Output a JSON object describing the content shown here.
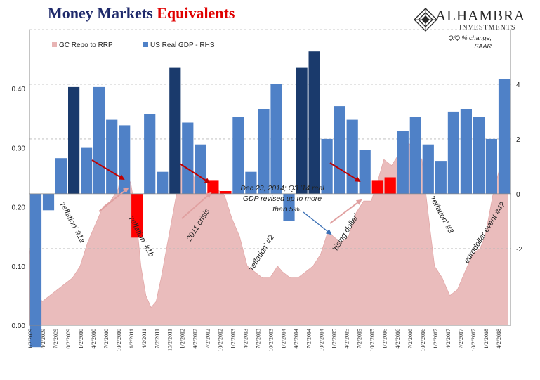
{
  "header": {
    "title_part1": "Money Markets",
    "title_part2": "Equivalents",
    "logo_name": "ALHAMBRA",
    "logo_sub": "INVESTMENTS",
    "logo_icon": "alhambra-diamond-icon"
  },
  "chart_data": {
    "type": "bar",
    "legend": [
      {
        "name": "GC Repo to RRP",
        "color": "#e8b4b4",
        "kind": "area"
      },
      {
        "name": "US Real GDP - RHS",
        "color": "#4f81c7",
        "kind": "bar"
      }
    ],
    "legend_position": "top-left",
    "rhs_unit_note": "Q/Q % change, SAAR",
    "left_axis": {
      "ylim": [
        0,
        0.5
      ],
      "ticks": [
        "0.00",
        "0.10",
        "0.20",
        "0.30",
        "0.40"
      ]
    },
    "right_axis": {
      "ylim": [
        -4.8,
        6
      ],
      "ticks": [
        "4",
        "2",
        "0",
        "-2"
      ]
    },
    "grid": "horizontal dashed",
    "x_tick_labels": [
      "1/2/2009",
      "4/2/2009",
      "7/2/2009",
      "10/2/2009",
      "1/2/2010",
      "4/2/2010",
      "7/2/2010",
      "10/2/2010",
      "1/2/2011",
      "4/2/2011",
      "7/2/2011",
      "10/2/2011",
      "1/2/2012",
      "4/2/2012",
      "7/2/2012",
      "10/2/2012",
      "1/2/2013",
      "4/2/2013",
      "7/2/2013",
      "10/2/2013",
      "1/2/2014",
      "4/2/2014",
      "7/2/2014",
      "10/2/2014",
      "1/2/2015",
      "4/2/2015",
      "7/2/2015",
      "10/2/2015",
      "1/2/2016",
      "4/2/2016",
      "7/2/2016",
      "10/2/2016",
      "1/2/2017",
      "4/2/2017",
      "7/2/2017",
      "10/2/2017",
      "1/2/2018",
      "4/2/2018"
    ],
    "gdp_quarters": [
      "2009Q1",
      "2009Q2",
      "2009Q3",
      "2009Q4",
      "2010Q1",
      "2010Q2",
      "2010Q3",
      "2010Q4",
      "2011Q1",
      "2011Q2",
      "2011Q3",
      "2011Q4",
      "2012Q1",
      "2012Q2",
      "2012Q3",
      "2012Q4",
      "2013Q1",
      "2013Q2",
      "2013Q3",
      "2013Q4",
      "2014Q1",
      "2014Q2",
      "2014Q3",
      "2014Q4",
      "2015Q1",
      "2015Q2",
      "2015Q3",
      "2015Q4",
      "2016Q1",
      "2016Q2",
      "2016Q3",
      "2016Q4",
      "2017Q1",
      "2017Q2",
      "2017Q3",
      "2017Q4",
      "2018Q1",
      "2018Q2"
    ],
    "gdp_values": [
      -5.6,
      -0.6,
      1.3,
      3.9,
      1.7,
      3.9,
      2.7,
      2.5,
      -1.6,
      2.9,
      0.8,
      4.6,
      2.6,
      1.8,
      0.5,
      0.1,
      2.8,
      0.8,
      3.1,
      4.0,
      -1.0,
      4.6,
      5.2,
      2.0,
      3.2,
      2.7,
      1.6,
      0.5,
      0.6,
      2.3,
      2.8,
      1.8,
      1.2,
      3.0,
      3.1,
      2.8,
      2.0,
      4.2
    ],
    "gdp_colors": [
      "#4f81c7",
      "#4f81c7",
      "#4f81c7",
      "#1a3a6c",
      "#4f81c7",
      "#4f81c7",
      "#4f81c7",
      "#4f81c7",
      "#ff0000",
      "#4f81c7",
      "#4f81c7",
      "#1a3a6c",
      "#4f81c7",
      "#4f81c7",
      "#ff0000",
      "#ff0000",
      "#4f81c7",
      "#4f81c7",
      "#4f81c7",
      "#4f81c7",
      "#4f81c7",
      "#1a3a6c",
      "#1a3a6c",
      "#4f81c7",
      "#4f81c7",
      "#4f81c7",
      "#4f81c7",
      "#ff0000",
      "#ff0000",
      "#4f81c7",
      "#4f81c7",
      "#4f81c7",
      "#4f81c7",
      "#4f81c7",
      "#4f81c7",
      "#4f81c7",
      "#4f81c7",
      "#4f81c7"
    ],
    "repo_spread_approx": [
      [
        2009.0,
        0.13
      ],
      [
        2009.12,
        0.06
      ],
      [
        2009.25,
        0.04
      ],
      [
        2009.4,
        0.05
      ],
      [
        2009.55,
        0.06
      ],
      [
        2009.7,
        0.07
      ],
      [
        2009.85,
        0.08
      ],
      [
        2010.0,
        0.1
      ],
      [
        2010.15,
        0.14
      ],
      [
        2010.3,
        0.17
      ],
      [
        2010.45,
        0.2
      ],
      [
        2010.6,
        0.21
      ],
      [
        2010.75,
        0.23
      ],
      [
        2010.85,
        0.27
      ],
      [
        2011.0,
        0.24
      ],
      [
        2011.1,
        0.19
      ],
      [
        2011.2,
        0.1
      ],
      [
        2011.3,
        0.05
      ],
      [
        2011.4,
        0.03
      ],
      [
        2011.5,
        0.04
      ],
      [
        2011.6,
        0.08
      ],
      [
        2011.75,
        0.15
      ],
      [
        2011.9,
        0.22
      ],
      [
        2012.0,
        0.27
      ],
      [
        2012.1,
        0.29
      ],
      [
        2012.25,
        0.25
      ],
      [
        2012.4,
        0.23
      ],
      [
        2012.55,
        0.22
      ],
      [
        2012.7,
        0.23
      ],
      [
        2012.85,
        0.22
      ],
      [
        2013.0,
        0.18
      ],
      [
        2013.15,
        0.15
      ],
      [
        2013.3,
        0.1
      ],
      [
        2013.45,
        0.09
      ],
      [
        2013.6,
        0.08
      ],
      [
        2013.75,
        0.08
      ],
      [
        2013.9,
        0.1
      ],
      [
        2014.0,
        0.09
      ],
      [
        2014.15,
        0.08
      ],
      [
        2014.3,
        0.08
      ],
      [
        2014.45,
        0.09
      ],
      [
        2014.6,
        0.1
      ],
      [
        2014.75,
        0.12
      ],
      [
        2014.9,
        0.16
      ],
      [
        2015.0,
        0.15
      ],
      [
        2015.15,
        0.14
      ],
      [
        2015.3,
        0.15
      ],
      [
        2015.45,
        0.19
      ],
      [
        2015.6,
        0.21
      ],
      [
        2015.75,
        0.21
      ],
      [
        2015.9,
        0.25
      ],
      [
        2016.0,
        0.28
      ],
      [
        2016.15,
        0.27
      ],
      [
        2016.3,
        0.29
      ],
      [
        2016.45,
        0.31
      ],
      [
        2016.6,
        0.3
      ],
      [
        2016.75,
        0.28
      ],
      [
        2016.9,
        0.17
      ],
      [
        2017.0,
        0.1
      ],
      [
        2017.15,
        0.08
      ],
      [
        2017.3,
        0.05
      ],
      [
        2017.45,
        0.06
      ],
      [
        2017.6,
        0.09
      ],
      [
        2017.75,
        0.12
      ],
      [
        2017.9,
        0.13
      ],
      [
        2018.0,
        0.15
      ],
      [
        2018.15,
        0.22
      ],
      [
        2018.3,
        0.27
      ],
      [
        2018.45,
        0.28
      ]
    ],
    "annotations": [
      {
        "text": "'reflation' #1a",
        "rotate": 62
      },
      {
        "text": "'reflation' #1b",
        "rotate": 62
      },
      {
        "text": "2011 crisis",
        "rotate": -58
      },
      {
        "text": "'reflation' #2",
        "rotate": -58
      },
      {
        "text": "'rising dollar'",
        "rotate": -58
      },
      {
        "text": "'reflation' #3",
        "rotate": 62
      },
      {
        "text": "eurodollar event #4?",
        "rotate": -58
      }
    ],
    "callout_lines": [
      "Dec 23, 2014; Q3 '14 real",
      "GDP revised up to more",
      "than 5%."
    ]
  }
}
